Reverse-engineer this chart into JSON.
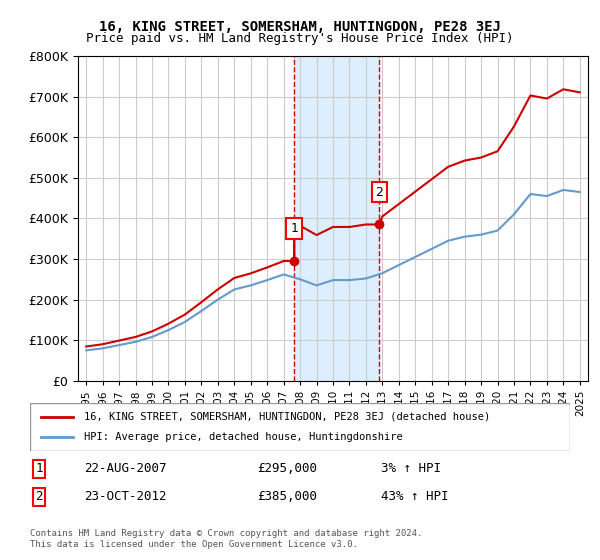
{
  "title1": "16, KING STREET, SOMERSHAM, HUNTINGDON, PE28 3EJ",
  "title2": "Price paid vs. HM Land Registry's House Price Index (HPI)",
  "legend_line1": "16, KING STREET, SOMERSHAM, HUNTINGDON, PE28 3EJ (detached house)",
  "legend_line2": "HPI: Average price, detached house, Huntingdonshire",
  "footnote": "Contains HM Land Registry data © Crown copyright and database right 2024.\nThis data is licensed under the Open Government Licence v3.0.",
  "sale1_label": "1",
  "sale1_date": "22-AUG-2007",
  "sale1_price": "£295,000",
  "sale1_hpi": "3% ↑ HPI",
  "sale2_label": "2",
  "sale2_date": "23-OCT-2012",
  "sale2_price": "£385,000",
  "sale2_hpi": "43% ↑ HPI",
  "sale1_x": 2007.64,
  "sale1_y": 295000,
  "sale2_x": 2012.81,
  "sale2_y": 385000,
  "line_color_red": "#cc0000",
  "line_color_blue": "#6699cc",
  "background_color": "#ffffff",
  "grid_color": "#cccccc",
  "shade_color": "#ddeeff",
  "ylim": [
    0,
    800000
  ],
  "xlim_start": 1994.5,
  "xlim_end": 2025.5
}
